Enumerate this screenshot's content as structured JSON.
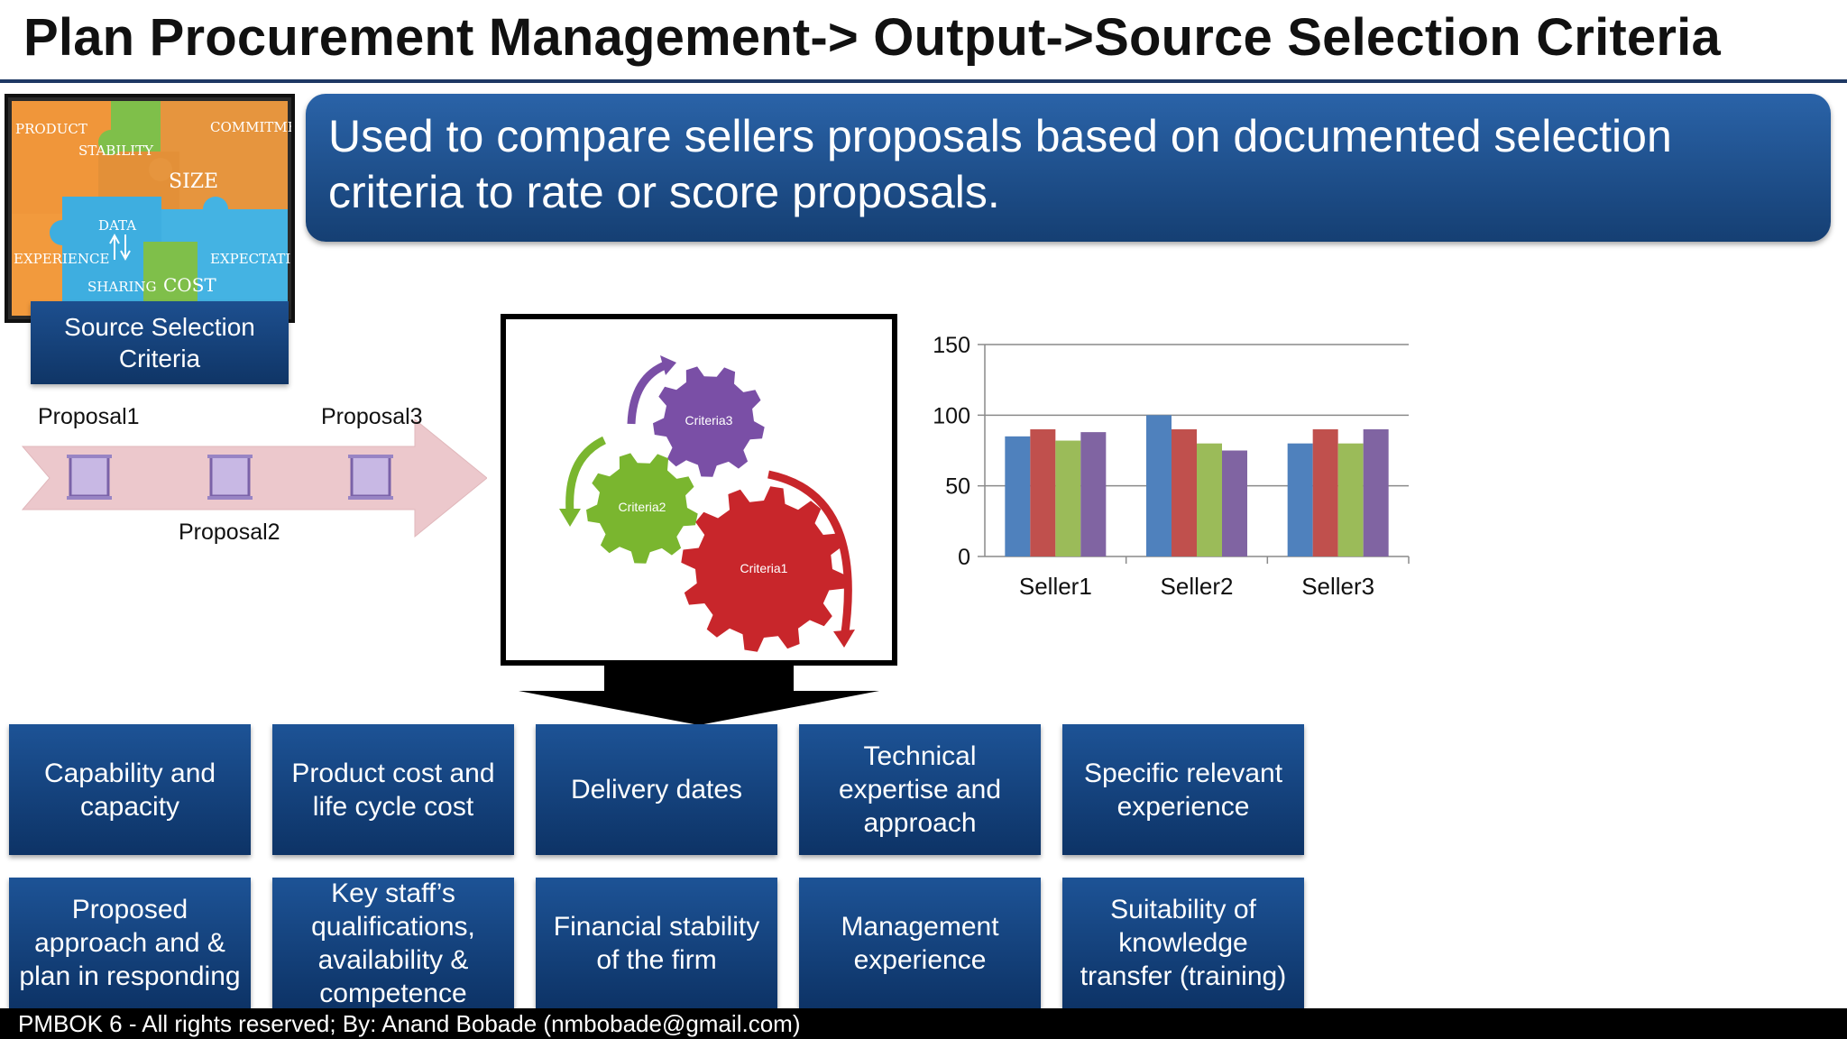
{
  "slide": {
    "title": "Plan Procurement Management-> Output->Source Selection Criteria",
    "banner": "Used to compare sellers proposals based on documented selection criteria to rate or score proposals.",
    "footer": "PMBOK 6 - All rights reserved; By: Anand Bobade (nmbobade@gmail.com)"
  },
  "image": {
    "words": [
      "PRODUCT",
      "STABILITY",
      "COMMITMENT",
      "SIZE",
      "DATA",
      "EXPERIENCE",
      "EXPECTATIONS",
      "SHARING",
      "COST"
    ],
    "caption": "Source Selection Criteria"
  },
  "proposals": {
    "p1": "Proposal1",
    "p2": "Proposal2",
    "p3": "Proposal3"
  },
  "gears": {
    "g1": "Criteria1",
    "g2": "Criteria2",
    "g3": "Criteria3",
    "colors": {
      "criteria1": "#c8262b",
      "criteria2": "#7ab62f",
      "criteria3": "#7a4fa6"
    }
  },
  "chart_data": {
    "type": "bar",
    "categories": [
      "Seller1",
      "Seller2",
      "Seller3"
    ],
    "series": [
      {
        "values": [
          85,
          100,
          80
        ],
        "color": "#4f81bd"
      },
      {
        "values": [
          90,
          90,
          90
        ],
        "color": "#c0504d"
      },
      {
        "values": [
          82,
          80,
          80
        ],
        "color": "#9bbb59"
      },
      {
        "values": [
          88,
          75,
          90
        ],
        "color": "#8064a2"
      }
    ],
    "yticks": [
      0,
      50,
      100,
      150
    ],
    "ylim": [
      0,
      150
    ],
    "grid": true
  },
  "criteria": {
    "row1": [
      "Capability and capacity",
      "Product cost and life cycle cost",
      "Delivery dates",
      "Technical expertise and approach",
      "Specific relevant experience"
    ],
    "row2": [
      "Proposed approach and & plan in responding",
      "Key staff’s qualifications, availability & competence",
      "Financial stability of the firm",
      "Management experience",
      "Suitability of knowledge transfer (training)"
    ]
  }
}
